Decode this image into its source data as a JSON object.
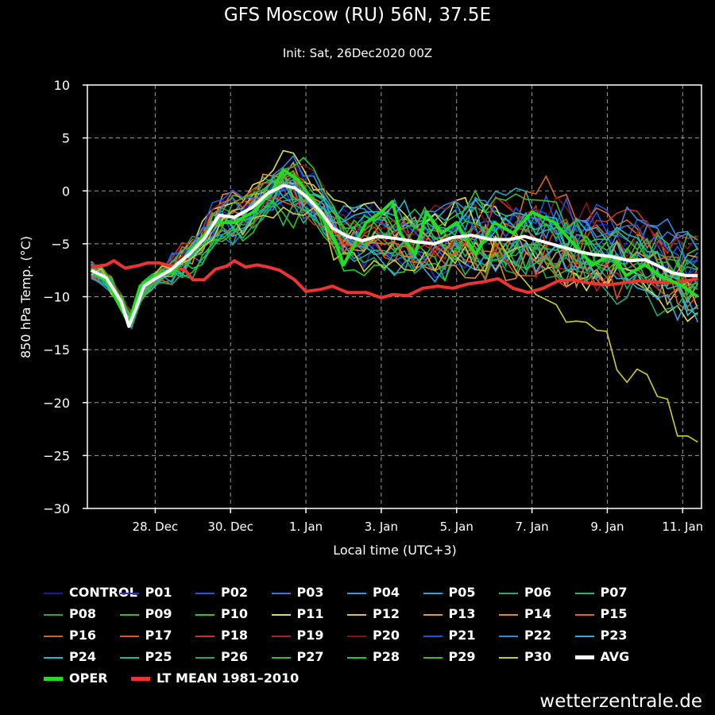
{
  "header": {
    "title": "GFS Moscow (RU) 56N, 37.5E",
    "subtitle": "Init: Sat, 26Dec2020 00Z"
  },
  "footer": {
    "credit": "wetterzentrale.de"
  },
  "chart_data": {
    "type": "line",
    "xlabel": "Local time (UTC+3)",
    "ylabel": "850 hPa Temp. (°C)",
    "ylim": [
      -30,
      10
    ],
    "xlim": [
      0,
      16.3
    ],
    "x_unit": "days after 26 Dec 00 local",
    "grid": true,
    "yticks": [
      10,
      5,
      0,
      -5,
      -10,
      -15,
      -20,
      -25,
      -30
    ],
    "ytick_labels": [
      "10",
      "5",
      "0",
      "−5",
      "−10",
      "−15",
      "−20",
      "−25",
      "−30"
    ],
    "xticks": [
      {
        "label": "28. Dec",
        "day": 1.8
      },
      {
        "label": "30. Dec",
        "day": 3.8
      },
      {
        "label": "1. Jan",
        "day": 5.8
      },
      {
        "label": "3. Jan",
        "day": 7.8
      },
      {
        "label": "5. Jan",
        "day": 9.8
      },
      {
        "label": "7. Jan",
        "day": 11.8
      },
      {
        "label": "9. Jan",
        "day": 13.8
      },
      {
        "label": "11. Jan",
        "day": 15.8
      }
    ],
    "series": [
      {
        "name": "OPER",
        "color": "#22dd22",
        "width": 4,
        "points": [
          [
            0.1,
            -7.5
          ],
          [
            0.5,
            -8.5
          ],
          [
            1.1,
            -12.5
          ],
          [
            1.4,
            -9
          ],
          [
            1.8,
            -8
          ],
          [
            2.3,
            -7.5
          ],
          [
            2.9,
            -5
          ],
          [
            3.4,
            -3
          ],
          [
            3.9,
            -3
          ],
          [
            4.4,
            -2
          ],
          [
            4.9,
            0
          ],
          [
            5.2,
            2
          ],
          [
            5.6,
            1
          ],
          [
            6.0,
            -1
          ],
          [
            6.3,
            -3
          ],
          [
            6.6,
            -5
          ],
          [
            6.8,
            -7
          ],
          [
            7.1,
            -5
          ],
          [
            7.4,
            -3
          ],
          [
            7.8,
            -2
          ],
          [
            8.1,
            -1
          ],
          [
            8.3,
            -4
          ],
          [
            8.7,
            -6
          ],
          [
            9.0,
            -2
          ],
          [
            9.4,
            -4
          ],
          [
            9.8,
            -3
          ],
          [
            10.3,
            -6
          ],
          [
            10.8,
            -3
          ],
          [
            11.3,
            -4
          ],
          [
            11.8,
            -2
          ],
          [
            12.4,
            -3
          ],
          [
            12.9,
            -5
          ],
          [
            13.4,
            -7
          ],
          [
            13.9,
            -6
          ],
          [
            14.3,
            -8
          ],
          [
            14.8,
            -7
          ],
          [
            15.2,
            -8
          ],
          [
            15.8,
            -9
          ],
          [
            16.2,
            -10
          ]
        ]
      },
      {
        "name": "AVG",
        "color": "#ffffff",
        "width": 4,
        "points": [
          [
            0.1,
            -7.5
          ],
          [
            0.5,
            -8.2
          ],
          [
            0.9,
            -10.5
          ],
          [
            1.1,
            -12.8
          ],
          [
            1.3,
            -11
          ],
          [
            1.5,
            -9
          ],
          [
            1.8,
            -8.3
          ],
          [
            2.2,
            -7.5
          ],
          [
            2.7,
            -6
          ],
          [
            3.1,
            -4.5
          ],
          [
            3.5,
            -2.3
          ],
          [
            3.9,
            -2.5
          ],
          [
            4.4,
            -1.5
          ],
          [
            4.8,
            -0.2
          ],
          [
            5.2,
            0.5
          ],
          [
            5.5,
            0.3
          ],
          [
            5.8,
            -0.5
          ],
          [
            6.2,
            -2
          ],
          [
            6.5,
            -3.5
          ],
          [
            6.9,
            -4.3
          ],
          [
            7.3,
            -4.7
          ],
          [
            7.7,
            -4.3
          ],
          [
            8.2,
            -4.5
          ],
          [
            8.7,
            -4.8
          ],
          [
            9.2,
            -5
          ],
          [
            9.7,
            -4.4
          ],
          [
            10.2,
            -4.2
          ],
          [
            10.7,
            -4.6
          ],
          [
            11.2,
            -4.6
          ],
          [
            11.6,
            -4.3
          ],
          [
            12.0,
            -4.7
          ],
          [
            12.5,
            -5.2
          ],
          [
            13.0,
            -5.7
          ],
          [
            13.4,
            -6
          ],
          [
            13.9,
            -6.2
          ],
          [
            14.4,
            -6.6
          ],
          [
            14.8,
            -6.5
          ],
          [
            15.1,
            -7
          ],
          [
            15.5,
            -7.7
          ],
          [
            15.9,
            -8
          ],
          [
            16.2,
            -8
          ]
        ]
      },
      {
        "name": "LT MEAN 1981-2010",
        "color": "#ee3333",
        "width": 4,
        "points": [
          [
            0.1,
            -7.2
          ],
          [
            0.5,
            -7
          ],
          [
            0.7,
            -6.6
          ],
          [
            1.0,
            -7.3
          ],
          [
            1.3,
            -7.1
          ],
          [
            1.6,
            -6.8
          ],
          [
            1.9,
            -6.8
          ],
          [
            2.3,
            -7.2
          ],
          [
            2.6,
            -7.5
          ],
          [
            2.8,
            -8.4
          ],
          [
            3.1,
            -8.4
          ],
          [
            3.4,
            -7.4
          ],
          [
            3.7,
            -7.1
          ],
          [
            3.9,
            -6.6
          ],
          [
            4.2,
            -7.2
          ],
          [
            4.5,
            -7
          ],
          [
            4.8,
            -7.2
          ],
          [
            5.1,
            -7.5
          ],
          [
            5.5,
            -8.4
          ],
          [
            5.8,
            -9.5
          ],
          [
            6.2,
            -9.3
          ],
          [
            6.5,
            -9
          ],
          [
            6.9,
            -9.6
          ],
          [
            7.4,
            -9.6
          ],
          [
            7.8,
            -10.1
          ],
          [
            8.1,
            -9.8
          ],
          [
            8.5,
            -9.9
          ],
          [
            8.9,
            -9.2
          ],
          [
            9.3,
            -9
          ],
          [
            9.7,
            -9.2
          ],
          [
            10.1,
            -8.8
          ],
          [
            10.5,
            -8.6
          ],
          [
            10.9,
            -8.3
          ],
          [
            11.3,
            -9.2
          ],
          [
            11.7,
            -9.6
          ],
          [
            12.1,
            -9.2
          ],
          [
            12.5,
            -8.5
          ],
          [
            12.9,
            -8.4
          ],
          [
            13.3,
            -8.7
          ],
          [
            13.8,
            -8.9
          ],
          [
            14.2,
            -8.7
          ],
          [
            14.6,
            -8.5
          ],
          [
            15.0,
            -8.6
          ],
          [
            15.4,
            -8.7
          ],
          [
            15.9,
            -8.5
          ],
          [
            16.2,
            -8.3
          ]
        ]
      }
    ],
    "legend": {
      "placement": "bottom",
      "entries": [
        {
          "label": "CONTROL",
          "color": "#1a1aa6"
        },
        {
          "label": "P01",
          "color": "#2233cc"
        },
        {
          "label": "P02",
          "color": "#2a55dd"
        },
        {
          "label": "P03",
          "color": "#3377dd"
        },
        {
          "label": "P04",
          "color": "#3399dd"
        },
        {
          "label": "P05",
          "color": "#22aacc"
        },
        {
          "label": "P06",
          "color": "#22aa88"
        },
        {
          "label": "P07",
          "color": "#22bb66"
        },
        {
          "label": "P08",
          "color": "#22aa44"
        },
        {
          "label": "P09",
          "color": "#33bb33"
        },
        {
          "label": "P10",
          "color": "#22cc22"
        },
        {
          "label": "P11",
          "color": "#dddd55"
        },
        {
          "label": "P12",
          "color": "#ddbb55"
        },
        {
          "label": "P13",
          "color": "#dd9944"
        },
        {
          "label": "P14",
          "color": "#dd8833"
        },
        {
          "label": "P15",
          "color": "#dd6622"
        },
        {
          "label": "P16",
          "color": "#cc6622"
        },
        {
          "label": "P17",
          "color": "#dd5522"
        },
        {
          "label": "P18",
          "color": "#cc3322"
        },
        {
          "label": "P19",
          "color": "#aa2222"
        },
        {
          "label": "P20",
          "color": "#881111"
        },
        {
          "label": "P21",
          "color": "#2255dd"
        },
        {
          "label": "P22",
          "color": "#3388dd"
        },
        {
          "label": "P23",
          "color": "#33aadd"
        },
        {
          "label": "P24",
          "color": "#22bbcc"
        },
        {
          "label": "P25",
          "color": "#22bb99"
        },
        {
          "label": "P26",
          "color": "#22aa66"
        },
        {
          "label": "P27",
          "color": "#33bb44"
        },
        {
          "label": "P28",
          "color": "#22cc33"
        },
        {
          "label": "P29",
          "color": "#44bb22"
        },
        {
          "label": "P30",
          "color": "#cccc33"
        },
        {
          "label": "AVG",
          "color": "#ffffff"
        },
        {
          "label": "OPER",
          "color": "#22dd22"
        },
        {
          "label": "LT MEAN 1981–2010",
          "color": "#ee3333"
        }
      ]
    }
  }
}
